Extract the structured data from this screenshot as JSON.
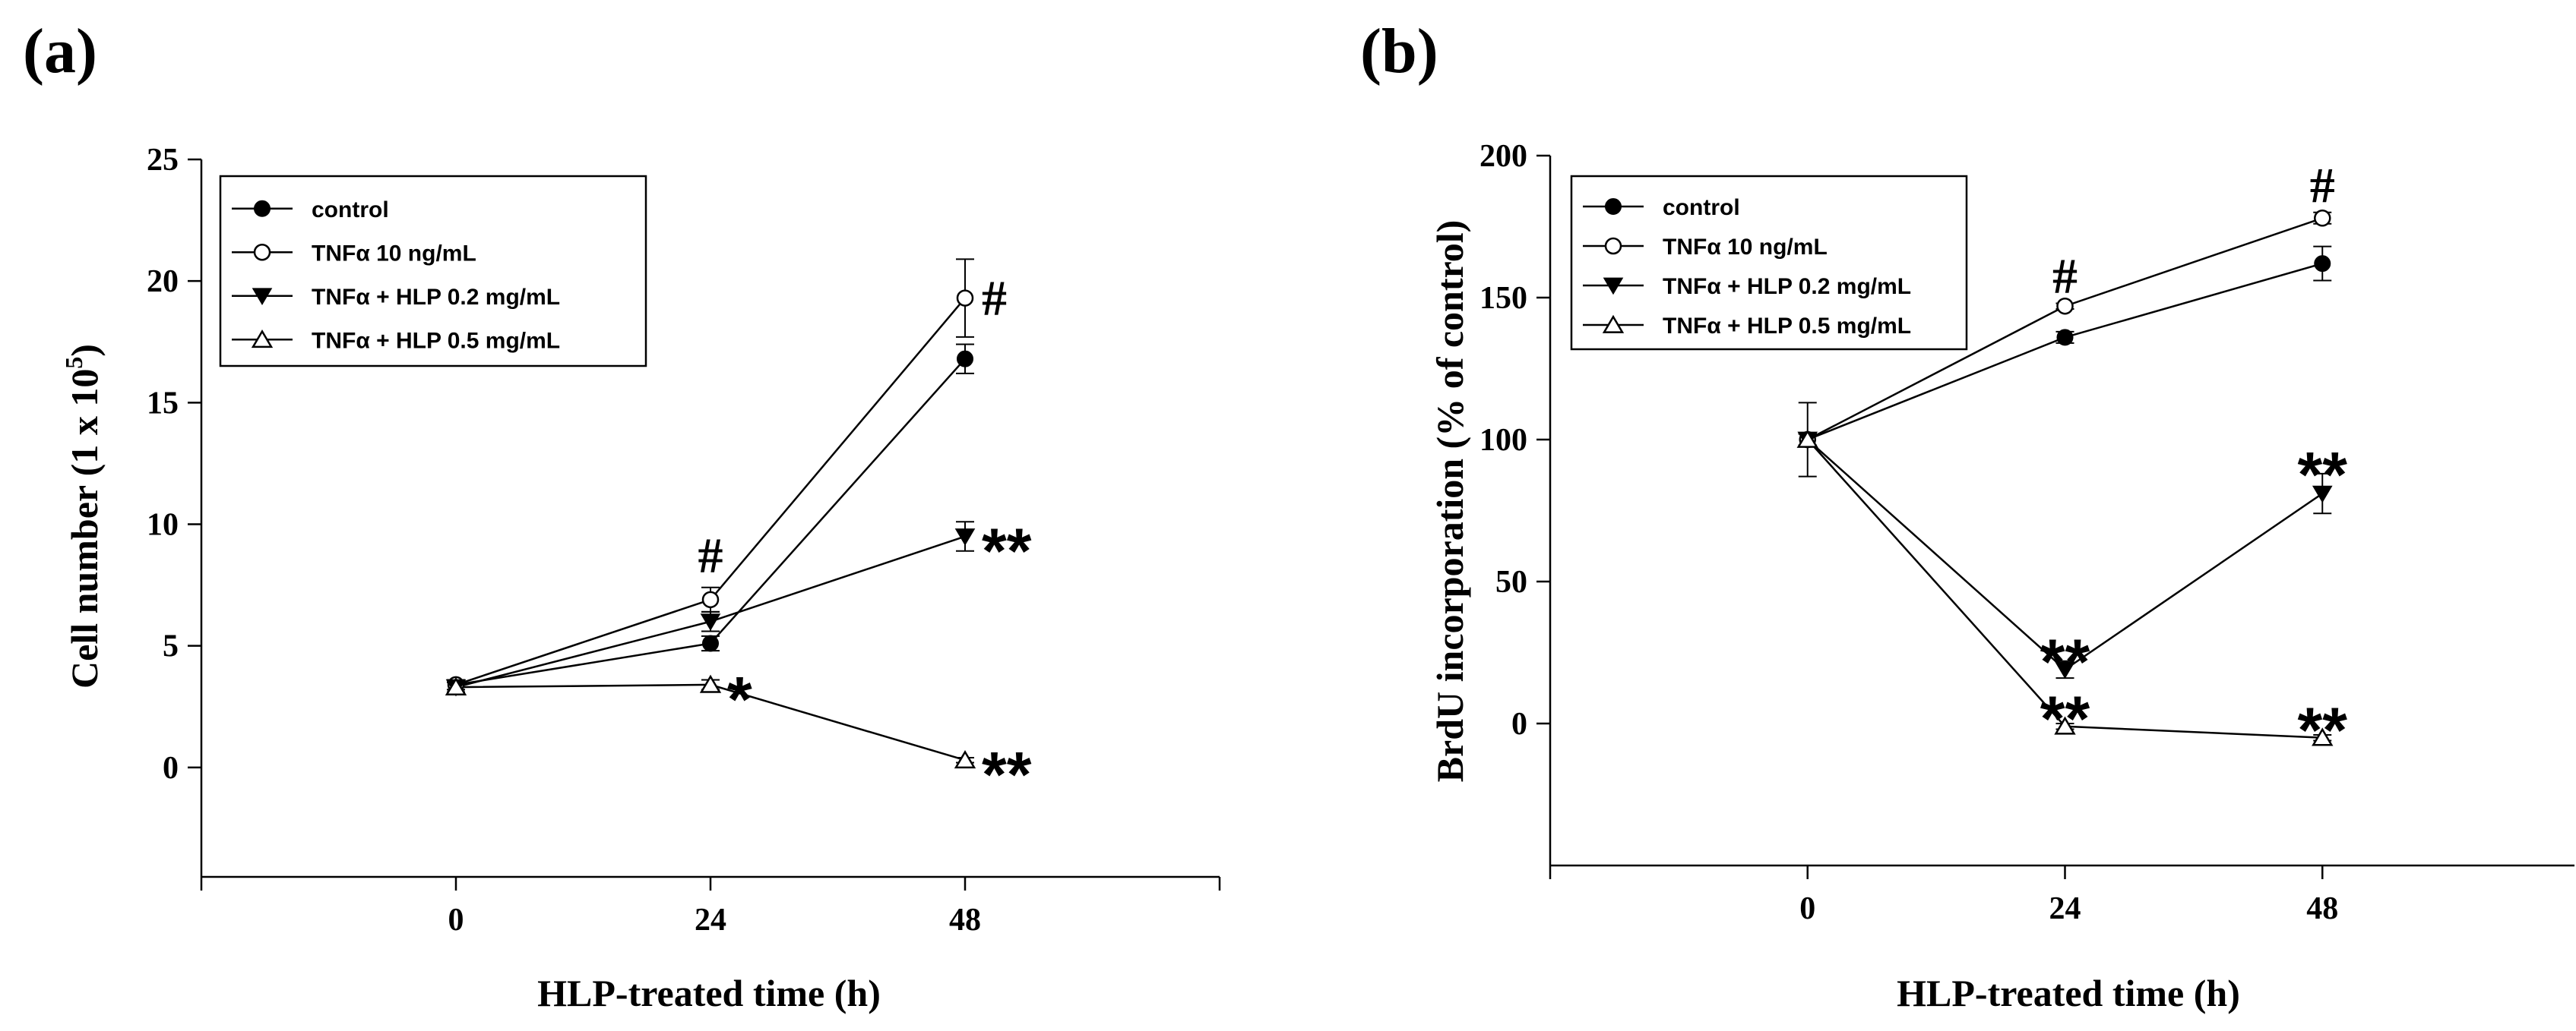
{
  "chart_data": [
    {
      "panel_label": "(a)",
      "type": "line",
      "xlabel": "HLP-treated time (h)",
      "ylabel_main": "Cell number (1 x 10",
      "ylabel_sup": "5",
      "ylabel_end": ")",
      "x": [
        0,
        24,
        48
      ],
      "x_ticks": [
        "0",
        "24",
        "48"
      ],
      "xlim": [
        -24,
        72
      ],
      "y_ticks": [
        "0",
        "5",
        "10",
        "15",
        "20",
        "25"
      ],
      "ylim": [
        -4.5,
        25
      ],
      "legend_position": "top-left",
      "series": [
        {
          "name": "control",
          "marker": "filled-circle",
          "values": [
            3.4,
            5.1,
            16.8
          ],
          "errors": [
            0.2,
            0.3,
            0.6
          ]
        },
        {
          "name": "TNFα 10 ng/mL",
          "marker": "open-circle",
          "values": [
            3.4,
            6.9,
            19.3
          ],
          "errors": [
            0.2,
            0.5,
            1.6
          ]
        },
        {
          "name": "TNFα + HLP 0.2 mg/mL",
          "marker": "filled-triangle-down",
          "values": [
            3.3,
            6.0,
            9.5
          ],
          "errors": [
            0.2,
            0.4,
            0.6
          ]
        },
        {
          "name": "TNFα + HLP 0.5 mg/mL",
          "marker": "open-triangle-up",
          "values": [
            3.3,
            3.4,
            0.3
          ],
          "errors": [
            0.2,
            0.2,
            0.1
          ]
        }
      ],
      "annotations": [
        {
          "text": "#",
          "x": 24,
          "y": 7.6,
          "kind": "hash",
          "anchor": "above"
        },
        {
          "text": "#",
          "x": 48,
          "y": 19.3,
          "kind": "hash",
          "anchor": "right"
        },
        {
          "text": "**",
          "x": 48,
          "y": 9.5,
          "kind": "star",
          "anchor": "right"
        },
        {
          "text": "*",
          "x": 24,
          "y": 3.4,
          "kind": "star",
          "anchor": "right"
        },
        {
          "text": "**",
          "x": 48,
          "y": 0.3,
          "kind": "star",
          "anchor": "right"
        }
      ]
    },
    {
      "panel_label": "(b)",
      "type": "line",
      "xlabel": "HLP-treated time (h)",
      "ylabel_main": "BrdU incorporation (% of control)",
      "ylabel_sup": "",
      "ylabel_end": "",
      "x": [
        0,
        24,
        48
      ],
      "x_ticks": [
        "0",
        "24",
        "48"
      ],
      "xlim": [
        -24,
        72
      ],
      "y_ticks": [
        "0",
        "50",
        "100",
        "150",
        "200"
      ],
      "ylim": [
        -50,
        200
      ],
      "legend_position": "top-left",
      "series": [
        {
          "name": "control",
          "marker": "filled-circle",
          "values": [
            100,
            136,
            162
          ],
          "errors": [
            13,
            2,
            6
          ]
        },
        {
          "name": "TNFα 10 ng/mL",
          "marker": "open-circle",
          "values": [
            100,
            147,
            178
          ],
          "errors": [
            2,
            1,
            2
          ]
        },
        {
          "name": "TNFα + HLP 0.2 mg/mL",
          "marker": "filled-triangle-down",
          "values": [
            100,
            19,
            81
          ],
          "errors": [
            2,
            3,
            7
          ]
        },
        {
          "name": "TNFα + HLP 0.5 mg/mL",
          "marker": "open-triangle-up",
          "values": [
            100,
            -1,
            -5
          ],
          "errors": [
            2,
            1,
            1
          ]
        }
      ],
      "annotations": [
        {
          "text": "#",
          "x": 24,
          "y": 148,
          "kind": "hash",
          "anchor": "above"
        },
        {
          "text": "#",
          "x": 48,
          "y": 180,
          "kind": "hash",
          "anchor": "above"
        },
        {
          "text": "**",
          "x": 48,
          "y": 88,
          "kind": "star",
          "anchor": "above"
        },
        {
          "text": "**",
          "x": 24,
          "y": 22,
          "kind": "star",
          "anchor": "above"
        },
        {
          "text": "**",
          "x": 24,
          "y": 2,
          "kind": "star",
          "anchor": "above"
        },
        {
          "text": "**",
          "x": 48,
          "y": -2,
          "kind": "star",
          "anchor": "above"
        }
      ]
    }
  ]
}
